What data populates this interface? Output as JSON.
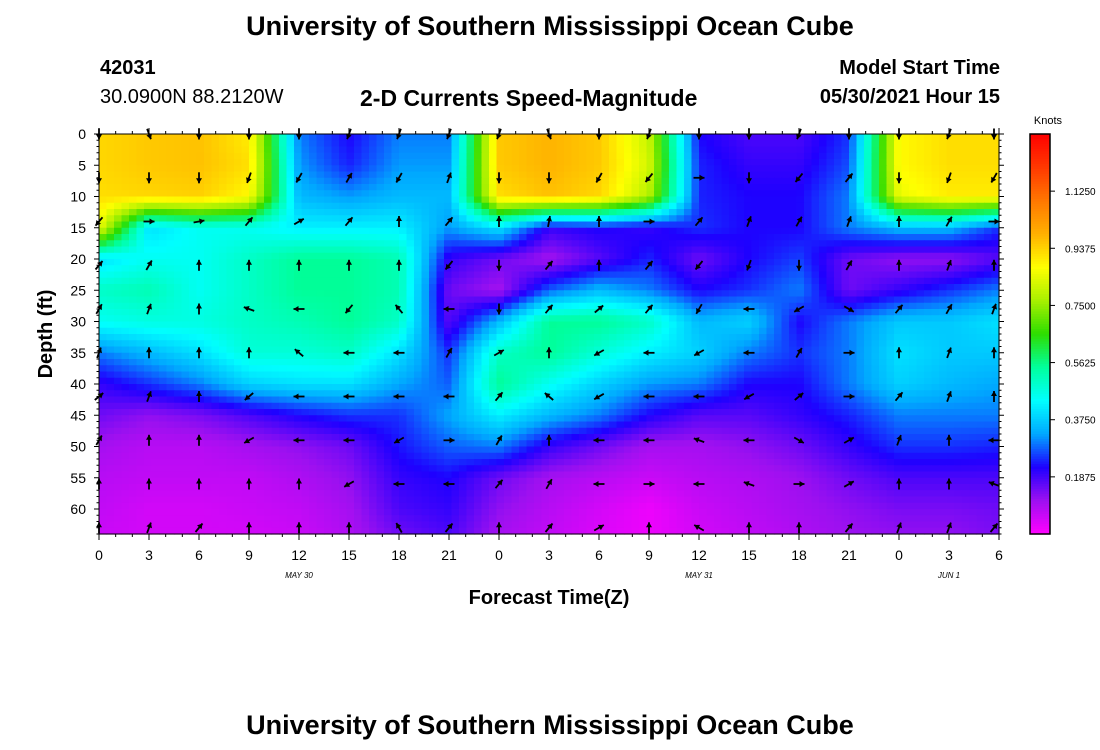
{
  "header": {
    "top_title": "University of Southern Mississippi Ocean Cube",
    "station_id": "42031",
    "station_coords": "30.0900N  88.2120W",
    "plot_title": "2-D Currents Speed-Magnitude",
    "start_label": "Model Start Time",
    "start_value": "05/30/2021 Hour 15",
    "bottom_title": "University of Southern Mississippi Ocean Cube"
  },
  "chart_data": {
    "type": "heatmap",
    "xlabel": "Forecast Time(Z)",
    "ylabel": "Depth (ft)",
    "x_tick_labels": [
      "0",
      "3",
      "6",
      "9",
      "12",
      "15",
      "18",
      "21",
      "0",
      "3",
      "6",
      "9",
      "12",
      "15",
      "18",
      "21",
      "0",
      "3",
      "6"
    ],
    "x_hours": [
      0,
      3,
      6,
      9,
      12,
      15,
      18,
      21,
      24,
      27,
      30,
      33,
      36,
      39,
      42,
      45,
      48,
      51,
      54
    ],
    "xlim": [
      0,
      54
    ],
    "date_labels": [
      {
        "text": "MAY 30",
        "hour": 12
      },
      {
        "text": "MAY 31",
        "hour": 36
      },
      {
        "text": "JUN 1",
        "hour": 51
      }
    ],
    "y_ticks": [
      0,
      5,
      10,
      15,
      20,
      25,
      30,
      35,
      40,
      45,
      50,
      55,
      60
    ],
    "ylim": [
      0,
      64
    ],
    "colorbar": {
      "label": "Knots",
      "tick_labels": [
        "1.1250",
        "0.9375",
        "0.7500",
        "0.5625",
        "0.3750",
        "0.1875"
      ],
      "tick_values": [
        1.125,
        0.9375,
        0.75,
        0.5625,
        0.375,
        0.1875
      ],
      "range": [
        0,
        1.3125
      ],
      "colors": [
        "#ff00ff",
        "#9d10f0",
        "#1e00ff",
        "#00a8ff",
        "#00ffff",
        "#00ff9c",
        "#2ddd00",
        "#a8f000",
        "#ffff00",
        "#ffb000",
        "#ff7700",
        "#ff3800",
        "#ff0000"
      ]
    },
    "speed_grid": {
      "depths": [
        0,
        5,
        10,
        15,
        20,
        25,
        30,
        35,
        40,
        45,
        50,
        55,
        60,
        64
      ],
      "hours": [
        0,
        3,
        6,
        9,
        12,
        15,
        18,
        21,
        24,
        27,
        30,
        33,
        36,
        39,
        42,
        45,
        48,
        51,
        54
      ],
      "values": [
        [
          0.93,
          0.95,
          0.96,
          0.9,
          0.3,
          0.22,
          0.3,
          0.3,
          0.95,
          0.98,
          0.95,
          0.8,
          0.22,
          0.18,
          0.18,
          0.25,
          0.88,
          0.92,
          0.92
        ],
        [
          0.93,
          0.95,
          0.96,
          0.92,
          0.32,
          0.24,
          0.32,
          0.32,
          0.95,
          0.98,
          0.95,
          0.82,
          0.24,
          0.2,
          0.2,
          0.27,
          0.88,
          0.92,
          0.92
        ],
        [
          0.92,
          0.93,
          0.94,
          0.88,
          0.35,
          0.32,
          0.35,
          0.35,
          0.92,
          0.96,
          0.93,
          0.78,
          0.24,
          0.22,
          0.22,
          0.3,
          0.85,
          0.9,
          0.9
        ],
        [
          0.85,
          0.4,
          0.45,
          0.45,
          0.42,
          0.42,
          0.42,
          0.32,
          0.4,
          0.2,
          0.22,
          0.2,
          0.25,
          0.22,
          0.22,
          0.3,
          0.35,
          0.35,
          0.25
        ],
        [
          0.4,
          0.45,
          0.45,
          0.5,
          0.55,
          0.55,
          0.52,
          0.2,
          0.15,
          0.1,
          0.17,
          0.24,
          0.15,
          0.22,
          0.26,
          0.15,
          0.12,
          0.12,
          0.17
        ],
        [
          0.5,
          0.52,
          0.45,
          0.5,
          0.55,
          0.55,
          0.52,
          0.15,
          0.1,
          0.28,
          0.35,
          0.3,
          0.22,
          0.25,
          0.3,
          0.15,
          0.2,
          0.25,
          0.3
        ],
        [
          0.45,
          0.47,
          0.47,
          0.5,
          0.52,
          0.55,
          0.5,
          0.17,
          0.35,
          0.55,
          0.55,
          0.5,
          0.35,
          0.38,
          0.22,
          0.3,
          0.37,
          0.37,
          0.4
        ],
        [
          0.3,
          0.35,
          0.4,
          0.48,
          0.48,
          0.5,
          0.4,
          0.25,
          0.5,
          0.55,
          0.48,
          0.42,
          0.38,
          0.3,
          0.25,
          0.3,
          0.4,
          0.37,
          0.37
        ],
        [
          0.2,
          0.25,
          0.3,
          0.38,
          0.4,
          0.4,
          0.33,
          0.28,
          0.55,
          0.45,
          0.38,
          0.32,
          0.3,
          0.22,
          0.22,
          0.3,
          0.38,
          0.35,
          0.33
        ],
        [
          0.15,
          0.12,
          0.14,
          0.18,
          0.22,
          0.25,
          0.25,
          0.33,
          0.42,
          0.35,
          0.3,
          0.22,
          0.17,
          0.17,
          0.2,
          0.24,
          0.3,
          0.3,
          0.3
        ],
        [
          0.1,
          0.08,
          0.08,
          0.1,
          0.12,
          0.15,
          0.23,
          0.28,
          0.3,
          0.2,
          0.15,
          0.1,
          0.1,
          0.12,
          0.15,
          0.2,
          0.25,
          0.25,
          0.24
        ],
        [
          0.08,
          0.07,
          0.07,
          0.07,
          0.09,
          0.12,
          0.2,
          0.22,
          0.15,
          0.1,
          0.08,
          0.06,
          0.08,
          0.09,
          0.11,
          0.15,
          0.18,
          0.18,
          0.18
        ],
        [
          0.07,
          0.05,
          0.05,
          0.06,
          0.07,
          0.1,
          0.18,
          0.2,
          0.12,
          0.08,
          0.05,
          0.02,
          0.06,
          0.08,
          0.1,
          0.12,
          0.14,
          0.14,
          0.15
        ],
        [
          0.06,
          0.05,
          0.05,
          0.05,
          0.06,
          0.09,
          0.15,
          0.18,
          0.1,
          0.07,
          0.04,
          0.02,
          0.05,
          0.07,
          0.09,
          0.11,
          0.12,
          0.12,
          0.14
        ]
      ]
    },
    "vector_directions_deg": {
      "depths": [
        0,
        7,
        14,
        21,
        28,
        35,
        42,
        49,
        56,
        63
      ],
      "hours": [
        0,
        3,
        6,
        9,
        12,
        15,
        18,
        21,
        24,
        27,
        30,
        33,
        36,
        39,
        42,
        45,
        48,
        51,
        54
      ],
      "values": [
        [
          180,
          160,
          180,
          180,
          180,
          200,
          200,
          200,
          200,
          160,
          180,
          200,
          180,
          180,
          200,
          180,
          180,
          200,
          180
        ],
        [
          180,
          180,
          180,
          200,
          210,
          30,
          210,
          20,
          180,
          180,
          210,
          220,
          90,
          180,
          220,
          40,
          180,
          200,
          210
        ],
        [
          220,
          90,
          80,
          40,
          60,
          40,
          0,
          40,
          0,
          10,
          0,
          90,
          40,
          20,
          30,
          20,
          0,
          30,
          90
        ],
        [
          40,
          30,
          0,
          0,
          0,
          0,
          0,
          220,
          180,
          40,
          0,
          40,
          220,
          200,
          180,
          30,
          0,
          20,
          0
        ],
        [
          30,
          20,
          0,
          290,
          270,
          220,
          320,
          270,
          180,
          40,
          50,
          40,
          210,
          270,
          240,
          120,
          40,
          30,
          20
        ],
        [
          20,
          0,
          0,
          0,
          310,
          270,
          270,
          30,
          60,
          0,
          240,
          270,
          240,
          270,
          30,
          90,
          0,
          20,
          0
        ],
        [
          50,
          20,
          0,
          230,
          270,
          270,
          270,
          270,
          40,
          310,
          240,
          270,
          270,
          240,
          50,
          90,
          40,
          20,
          0
        ],
        [
          30,
          0,
          0,
          240,
          270,
          270,
          240,
          90,
          30,
          0,
          270,
          270,
          290,
          270,
          120,
          60,
          20,
          0,
          270
        ],
        [
          0,
          0,
          0,
          0,
          0,
          240,
          270,
          270,
          40,
          30,
          270,
          90,
          270,
          290,
          90,
          60,
          0,
          0,
          290
        ],
        [
          0,
          20,
          40,
          0,
          0,
          0,
          330,
          40,
          0,
          40,
          60,
          0,
          300,
          0,
          0,
          40,
          20,
          20,
          40
        ]
      ]
    }
  }
}
